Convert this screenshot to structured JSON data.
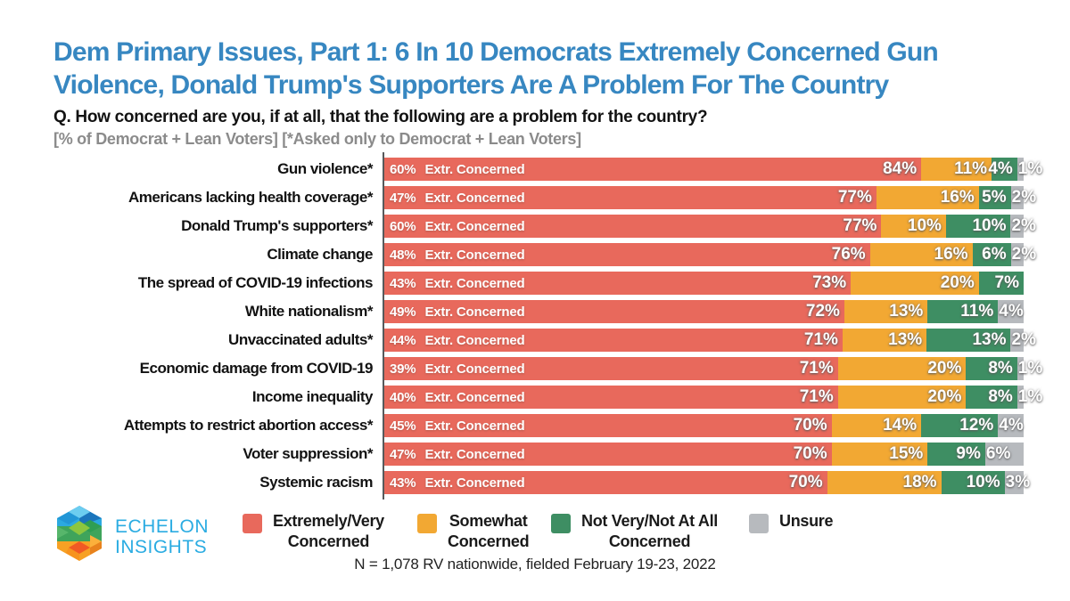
{
  "title": {
    "lines": [
      "Dem Primary Issues, Part 1: 6 In 10 Democrats Extremely Concerned Gun",
      "Violence, Donald Trump's Supporters Are A Problem For The Country"
    ]
  },
  "question": "Q. How concerned are you, if at all, that the following are a problem for the country?",
  "note": "[% of Democrat + Lean Voters] [*Asked only to Democrat + Lean Voters]",
  "footer": "N = 1,078 RV nationwide, fielded February 19-23, 2022",
  "logo": {
    "line1": "ECHELON",
    "line2": "INSIGHTS"
  },
  "colors": {
    "title_blue": "#3787C1",
    "extremely": "#E8695C",
    "somewhat": "#F2A833",
    "not_very": "#3E8E63",
    "unsure": "#B7BABE",
    "logo_text": "#2BACE2"
  },
  "legend": {
    "items": [
      {
        "name": "extremely-very-concerned",
        "label_lines": [
          "Extremely/Very",
          "Concerned"
        ],
        "color": "#E8695C"
      },
      {
        "name": "somewhat-concerned",
        "label_lines": [
          "Somewhat",
          "Concerned"
        ],
        "color": "#F2A833"
      },
      {
        "name": "not-very-not-at-all-concerned",
        "label_lines": [
          "Not Very/Not At All",
          "Concerned"
        ],
        "color": "#3E8E63"
      },
      {
        "name": "unsure",
        "label_lines": [
          "Unsure"
        ],
        "color": "#B7BABE"
      }
    ]
  },
  "chart_data": {
    "type": "bar",
    "stacked": true,
    "orientation": "horizontal",
    "unit": "%",
    "xlim": [
      0,
      100
    ],
    "extr_text": "Extr. Concerned",
    "series": [
      "Extremely/Very Concerned",
      "Somewhat Concerned",
      "Not Very/Not At All Concerned",
      "Unsure"
    ],
    "rows": [
      {
        "label": "Gun violence*",
        "extr_pct": "60%",
        "values": [
          84,
          11,
          4,
          1
        ]
      },
      {
        "label": "Americans lacking health coverage*",
        "extr_pct": "47%",
        "values": [
          77,
          16,
          5,
          2
        ]
      },
      {
        "label": "Donald Trump's supporters*",
        "extr_pct": "60%",
        "values": [
          77,
          10,
          10,
          2
        ]
      },
      {
        "label": "Climate change",
        "extr_pct": "48%",
        "values": [
          76,
          16,
          6,
          2
        ]
      },
      {
        "label": "The spread of COVID-19 infections",
        "extr_pct": "43%",
        "values": [
          73,
          20,
          7,
          0
        ]
      },
      {
        "label": "White nationalism*",
        "extr_pct": "49%",
        "values": [
          72,
          13,
          11,
          4
        ]
      },
      {
        "label": "Unvaccinated adults*",
        "extr_pct": "44%",
        "values": [
          71,
          13,
          13,
          2
        ]
      },
      {
        "label": "Economic damage from COVID-19",
        "extr_pct": "39%",
        "values": [
          71,
          20,
          8,
          1
        ]
      },
      {
        "label": "Income inequality",
        "extr_pct": "40%",
        "values": [
          71,
          20,
          8,
          1
        ]
      },
      {
        "label": "Attempts to restrict abortion access*",
        "extr_pct": "45%",
        "values": [
          70,
          14,
          12,
          4
        ]
      },
      {
        "label": "Voter suppression*",
        "extr_pct": "47%",
        "values": [
          70,
          15,
          9,
          6
        ]
      },
      {
        "label": "Systemic racism",
        "extr_pct": "43%",
        "values": [
          70,
          18,
          10,
          3
        ]
      }
    ]
  }
}
